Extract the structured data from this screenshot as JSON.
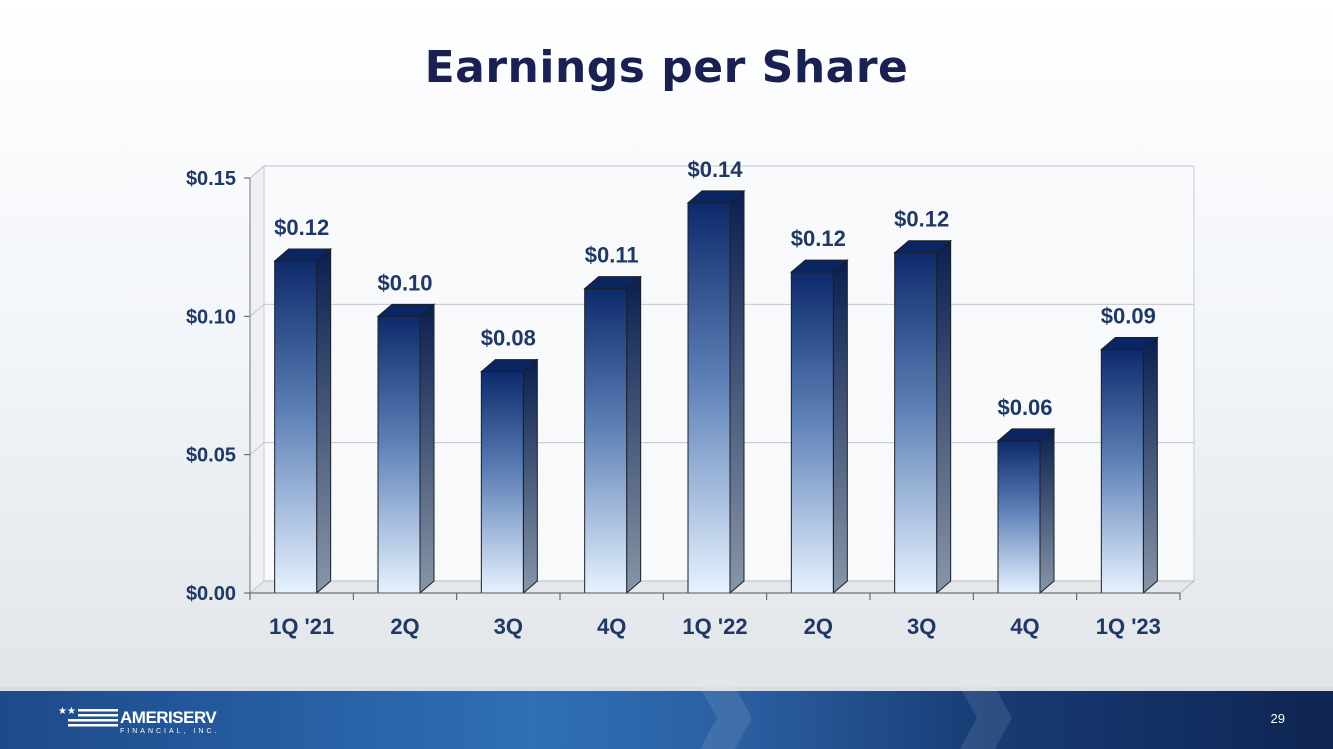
{
  "slide": {
    "title": "Earnings per Share",
    "page_number": "29"
  },
  "brand": {
    "name": "AMERISERV",
    "subtitle": "FINANCIAL, INC.",
    "logo_icon": "flag-stars-icon"
  },
  "colors": {
    "title": "#1a2152",
    "label": "#1f3864",
    "bar_top": "#0d2a6b",
    "bar_bottom": "#dfefff",
    "footer": "#2f6fb6"
  },
  "chart_data": {
    "type": "bar",
    "title": "",
    "xlabel": "",
    "ylabel": "",
    "categories": [
      "1Q '21",
      "2Q",
      "3Q",
      "4Q",
      "1Q '22",
      "2Q",
      "3Q",
      "4Q",
      "1Q '23"
    ],
    "values": [
      0.12,
      0.1,
      0.08,
      0.11,
      0.141,
      0.116,
      0.123,
      0.055,
      0.088
    ],
    "data_labels": [
      "$0.12",
      "$0.10",
      "$0.08",
      "$0.11",
      "$0.14",
      "$0.12",
      "$0.12",
      "$0.06",
      "$0.09"
    ],
    "ylim": [
      0,
      0.15
    ],
    "yticks": [
      0,
      0.05,
      0.1,
      0.15
    ],
    "ytick_labels": [
      "$0.00",
      "$0.05",
      "$0.10",
      "$0.15"
    ],
    "grid": true,
    "legend": "none",
    "style": "3d-gradient-columns"
  }
}
